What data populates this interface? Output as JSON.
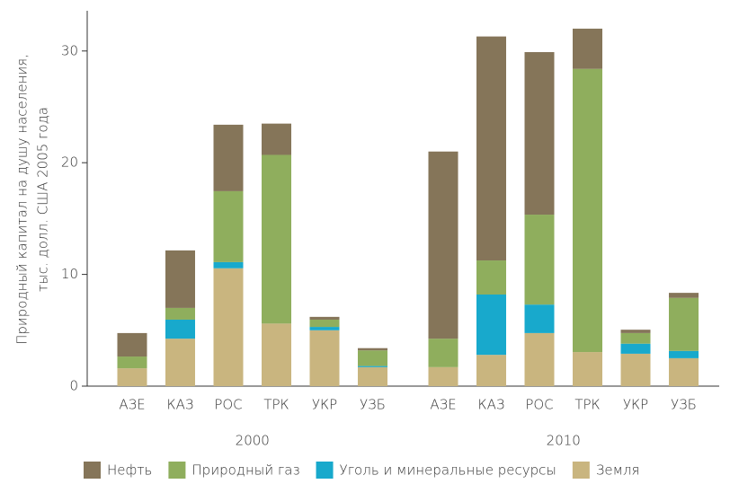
{
  "chart_data": {
    "type": "stacked-bar",
    "ylabel": [
      "Природный капитал на душу населения,",
      "тыс. долл. США 2005 года"
    ],
    "categories": [
      "АЗЕ",
      "КАЗ",
      "РОС",
      "ТРК",
      "УКР",
      "УЗБ",
      "АЗЕ",
      "КАЗ",
      "РОС",
      "ТРК",
      "УКР",
      "УЗБ"
    ],
    "group_labels": [
      "2000",
      "2010"
    ],
    "series": [
      {
        "name": "Земля",
        "color": "#c9b57f",
        "values": [
          1.6,
          4.25,
          10.55,
          5.6,
          5.0,
          1.7,
          1.7,
          2.8,
          4.75,
          3.05,
          2.9,
          2.5
        ]
      },
      {
        "name": "Уголь и минеральные ресурсы",
        "color": "#18a9cc",
        "values": [
          0,
          1.7,
          0.55,
          0,
          0.3,
          0.1,
          0,
          5.4,
          2.55,
          0,
          0.9,
          0.65
        ]
      },
      {
        "name": "Природный газ",
        "color": "#8fae5d",
        "values": [
          1.05,
          1.05,
          6.35,
          15.1,
          0.65,
          1.4,
          2.55,
          3.05,
          8.05,
          25.35,
          0.95,
          4.75
        ]
      },
      {
        "name": "Нефть",
        "color": "#857559",
        "values": [
          2.1,
          5.15,
          5.95,
          2.8,
          0.25,
          0.2,
          16.75,
          20.05,
          14.55,
          3.6,
          0.3,
          0.45
        ]
      }
    ],
    "legend_order": [
      3,
      2,
      1,
      0
    ],
    "ylim": [
      0,
      33.6
    ],
    "yticks": [
      0,
      10,
      20,
      30
    ],
    "grid": false
  }
}
